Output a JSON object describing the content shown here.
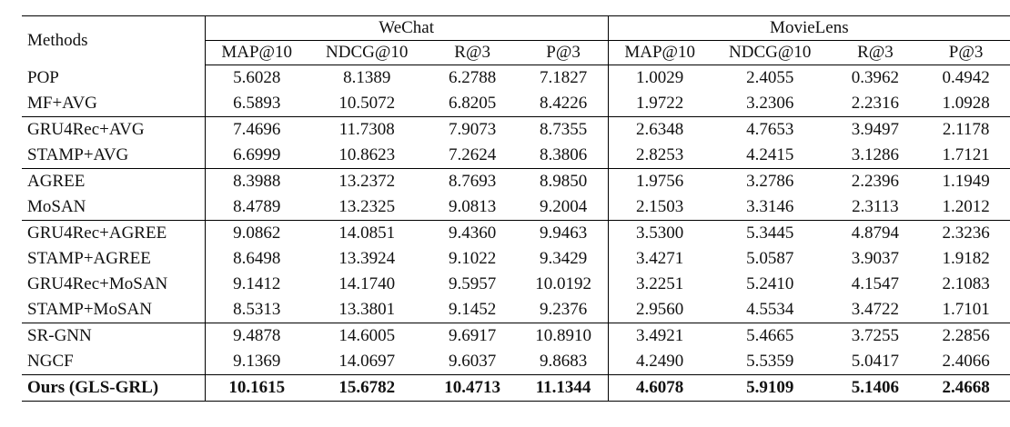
{
  "table": {
    "methods_header": "Methods",
    "datasets": [
      "WeChat",
      "MovieLens"
    ],
    "metrics": [
      "MAP@10",
      "NDCG@10",
      "R@3",
      "P@3"
    ],
    "groups": [
      [
        {
          "method": "POP",
          "values": [
            "5.6028",
            "8.1389",
            "6.2788",
            "7.1827",
            "1.0029",
            "2.4055",
            "0.3962",
            "0.4942"
          ]
        },
        {
          "method": "MF+AVG",
          "values": [
            "6.5893",
            "10.5072",
            "6.8205",
            "8.4226",
            "1.9722",
            "3.2306",
            "2.2316",
            "1.0928"
          ]
        }
      ],
      [
        {
          "method": "GRU4Rec+AVG",
          "values": [
            "7.4696",
            "11.7308",
            "7.9073",
            "8.7355",
            "2.6348",
            "4.7653",
            "3.9497",
            "2.1178"
          ]
        },
        {
          "method": "STAMP+AVG",
          "values": [
            "6.6999",
            "10.8623",
            "7.2624",
            "8.3806",
            "2.8253",
            "4.2415",
            "3.1286",
            "1.7121"
          ]
        }
      ],
      [
        {
          "method": "AGREE",
          "values": [
            "8.3988",
            "13.2372",
            "8.7693",
            "8.9850",
            "1.9756",
            "3.2786",
            "2.2396",
            "1.1949"
          ]
        },
        {
          "method": "MoSAN",
          "values": [
            "8.4789",
            "13.2325",
            "9.0813",
            "9.2004",
            "2.1503",
            "3.3146",
            "2.3113",
            "1.2012"
          ]
        }
      ],
      [
        {
          "method": "GRU4Rec+AGREE",
          "values": [
            "9.0862",
            "14.0851",
            "9.4360",
            "9.9463",
            "3.5300",
            "5.3445",
            "4.8794",
            "2.3236"
          ]
        },
        {
          "method": "STAMP+AGREE",
          "values": [
            "8.6498",
            "13.3924",
            "9.1022",
            "9.3429",
            "3.4271",
            "5.0587",
            "3.9037",
            "1.9182"
          ]
        },
        {
          "method": "GRU4Rec+MoSAN",
          "values": [
            "9.1412",
            "14.1740",
            "9.5957",
            "10.0192",
            "3.2251",
            "5.2410",
            "4.1547",
            "2.1083"
          ]
        },
        {
          "method": "STAMP+MoSAN",
          "values": [
            "8.5313",
            "13.3801",
            "9.1452",
            "9.2376",
            "2.9560",
            "4.5534",
            "3.4722",
            "1.7101"
          ]
        }
      ],
      [
        {
          "method": "SR-GNN",
          "values": [
            "9.4878",
            "14.6005",
            "9.6917",
            "10.8910",
            "3.4921",
            "5.4665",
            "3.7255",
            "2.2856"
          ]
        },
        {
          "method": "NGCF",
          "values": [
            "9.1369",
            "14.0697",
            "9.6037",
            "9.8683",
            "4.2490",
            "5.5359",
            "5.0417",
            "2.4066"
          ]
        }
      ],
      [
        {
          "method": "Ours (GLS-GRL)",
          "bold": true,
          "values": [
            "10.1615",
            "15.6782",
            "10.4713",
            "11.1344",
            "4.6078",
            "5.9109",
            "5.1406",
            "2.4668"
          ]
        }
      ]
    ]
  }
}
